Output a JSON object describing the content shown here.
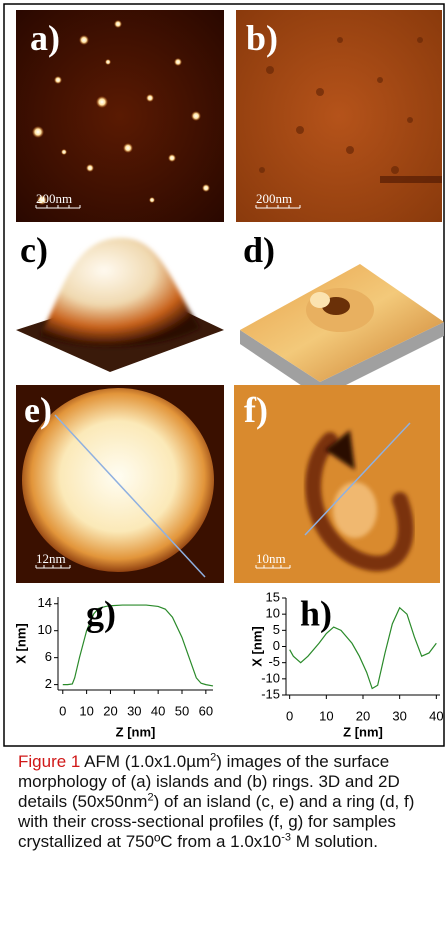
{
  "panels": [
    {
      "label": "a)",
      "scale": "200nm"
    },
    {
      "label": "b)",
      "scale": "200nm"
    },
    {
      "label": "c)"
    },
    {
      "label": "d)"
    },
    {
      "label": "e)",
      "scale": "12nm"
    },
    {
      "label": "f)",
      "scale": "10nm"
    }
  ],
  "chart_data": [
    {
      "type": "line",
      "title": "g)",
      "x_label": "Z [nm]",
      "y_label": "X [nm]",
      "x": [
        0,
        2,
        4,
        5,
        7,
        10,
        13,
        15,
        18,
        20,
        25,
        30,
        35,
        40,
        43,
        46,
        50,
        53,
        56,
        58,
        60,
        63
      ],
      "series": [
        {
          "color": "#2a8a2a",
          "values": [
            2,
            2,
            2.1,
            3,
            6,
            10,
            12.5,
            13.3,
            13.6,
            13.7,
            13.8,
            13.8,
            13.8,
            13.6,
            13.2,
            12,
            9,
            6,
            3,
            2.2,
            2,
            1.8
          ]
        }
      ],
      "xlim": [
        -2,
        63
      ],
      "ylim": [
        1.2,
        15
      ],
      "xticks": [
        0,
        10,
        20,
        30,
        40,
        50,
        60
      ],
      "yticks": [
        2,
        6,
        10,
        14
      ]
    },
    {
      "type": "line",
      "title": "h)",
      "x_label": "Z [nm]",
      "y_label": "X [nm]",
      "x": [
        0,
        1,
        3,
        5,
        8,
        10,
        12,
        14,
        17,
        19,
        21,
        22.5,
        24,
        26,
        28,
        30,
        32,
        34,
        36,
        38,
        40
      ],
      "series": [
        {
          "color": "#2a8a2a",
          "values": [
            -1,
            -3,
            -5,
            -3,
            1,
            4,
            6,
            5,
            1,
            -3,
            -8,
            -13,
            -12,
            -2,
            7,
            12,
            10,
            3,
            -3,
            -2,
            1
          ]
        }
      ],
      "xlim": [
        -1,
        41
      ],
      "ylim": [
        -15,
        15
      ],
      "xticks": [
        0,
        10,
        20,
        30,
        40
      ],
      "yticks": [
        15,
        10,
        5,
        0,
        -5,
        -10,
        -15
      ]
    }
  ],
  "caption": {
    "label": "Figure 1",
    "parts": [
      "AFM (1.0x1.0µm",
      "2",
      ") images of the surface morphology of (a) islands and (b) rings. 3D and 2D details (50x50nm",
      "2",
      ") of an island (c, e) and a ring (d, f) with their cross-sectional profiles (f, g) for samples crystallized at 750ºC from a 1.0x10",
      "-3",
      " M solution."
    ]
  }
}
